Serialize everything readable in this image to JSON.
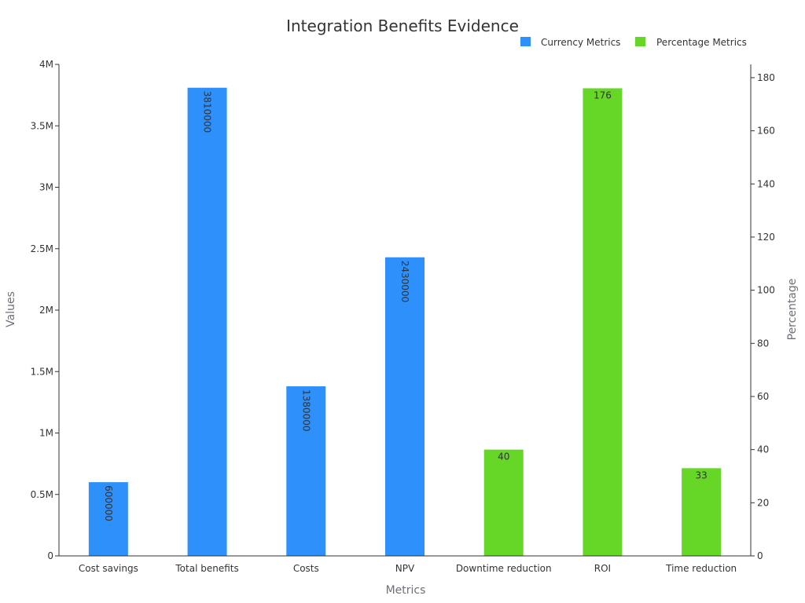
{
  "chart_data": {
    "type": "bar",
    "title": "Integration Benefits Evidence",
    "xlabel": "Metrics",
    "ylabel": "Values",
    "y2label": "Percentage",
    "categories": [
      "Cost savings",
      "Total benefits",
      "Costs",
      "NPV",
      "Downtime reduction",
      "ROI",
      "Time reduction"
    ],
    "ylim": [
      0,
      4000000
    ],
    "y2lim": [
      0,
      185
    ],
    "yticks": [
      {
        "value": 0,
        "label": "0"
      },
      {
        "value": 500000,
        "label": "0.5M"
      },
      {
        "value": 1000000,
        "label": "1M"
      },
      {
        "value": 1500000,
        "label": "1.5M"
      },
      {
        "value": 2000000,
        "label": "2M"
      },
      {
        "value": 2500000,
        "label": "2.5M"
      },
      {
        "value": 3000000,
        "label": "3M"
      },
      {
        "value": 3500000,
        "label": "3.5M"
      },
      {
        "value": 4000000,
        "label": "4M"
      }
    ],
    "y2ticks": [
      0,
      20,
      40,
      60,
      80,
      100,
      120,
      140,
      160,
      180
    ],
    "legend_position": "top-right",
    "grid": false,
    "series": [
      {
        "name": "Currency Metrics",
        "axis": "left",
        "color": "#2e90fa",
        "values": [
          600000,
          3810000,
          1380000,
          2430000,
          null,
          null,
          null
        ],
        "labels": [
          "600000",
          "3810000",
          "1380000",
          "2430000",
          "",
          "",
          ""
        ]
      },
      {
        "name": "Percentage Metrics",
        "axis": "right",
        "color": "#66d726",
        "values": [
          null,
          null,
          null,
          null,
          40,
          176,
          33
        ],
        "labels": [
          "",
          "",
          "",
          "",
          "40",
          "176",
          "33"
        ]
      }
    ]
  }
}
